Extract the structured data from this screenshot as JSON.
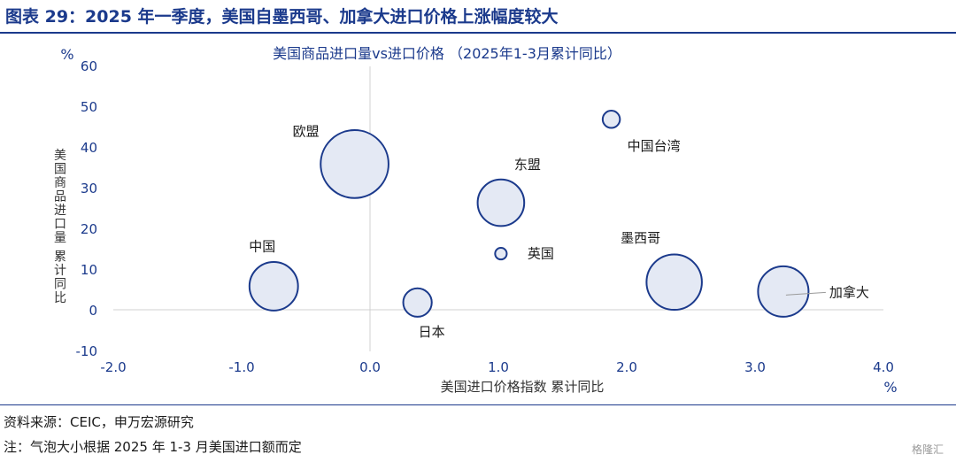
{
  "figure_title": "图表 29：2025 年一季度，美国自墨西哥、加拿大进口价格上涨幅度较大",
  "source": "资料来源：CEIC，申万宏源研究",
  "note": "注：气泡大小根据 2025 年 1-3 月美国进口额而定",
  "watermark": "格隆汇",
  "colors": {
    "accent": "#1b3a8c",
    "bubble_fill": "#e4e9f4",
    "bubble_stroke": "#1b3a8c",
    "axis": "#d0d0d0"
  },
  "chart_data": {
    "type": "scatter",
    "title": "美国商品进口量vs进口价格 （2025年1-3月累计同比）",
    "xlabel": "美国进口价格指数 累计同比",
    "ylabel": "美国商品进口量 累计同比",
    "x_unit": "%",
    "y_unit": "%",
    "xlim": [
      -2.0,
      4.0
    ],
    "ylim": [
      -10,
      60
    ],
    "x_ticks": [
      "-2.0",
      "-1.0",
      "0.0",
      "1.0",
      "2.0",
      "3.0",
      "4.0"
    ],
    "y_ticks": [
      "-10",
      "0",
      "10",
      "20",
      "30",
      "40",
      "50",
      "60"
    ],
    "bubble_size_basis": "美国进口额",
    "points": [
      {
        "name": "欧盟",
        "x": -0.12,
        "y": 36,
        "size": 17.0
      },
      {
        "name": "中国台湾",
        "x": 1.88,
        "y": 47,
        "size": 1.1
      },
      {
        "name": "东盟",
        "x": 1.02,
        "y": 26.5,
        "size": 8.0
      },
      {
        "name": "英国",
        "x": 1.02,
        "y": 14,
        "size": 0.5
      },
      {
        "name": "墨西哥",
        "x": 2.37,
        "y": 7,
        "size": 11.3
      },
      {
        "name": "中国",
        "x": -0.75,
        "y": 6,
        "size": 8.7
      },
      {
        "name": "加拿大",
        "x": 3.22,
        "y": 4.7,
        "size": 9.4
      },
      {
        "name": "日本",
        "x": 0.37,
        "y": 2,
        "size": 3.0
      }
    ]
  }
}
